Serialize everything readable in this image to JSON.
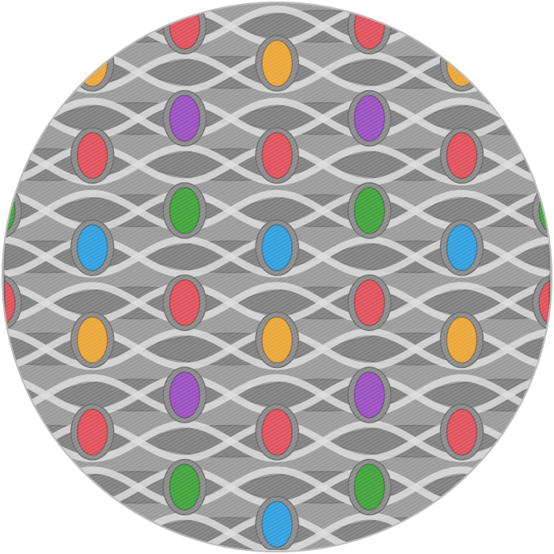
{
  "rug": {
    "shape": "circle",
    "base_color": "#9a9a9a",
    "lens_color": "#7d7d7d",
    "strand_color": "#dcdcdc",
    "outline_color": "#6e6e6e"
  },
  "gem_colors": {
    "red": "#e0505a",
    "orange": "#eba637",
    "purple": "#9a4fc0",
    "green": "#3fa33a",
    "blue": "#2f9fe0"
  },
  "column_patterns": [
    [
      "red",
      "purple",
      "green"
    ],
    [
      "orange",
      "red",
      "blue"
    ]
  ]
}
